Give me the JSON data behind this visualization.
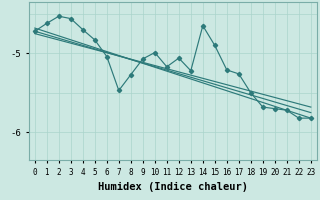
{
  "xlabel": "Humidex (Indice chaleur)",
  "x": [
    0,
    1,
    2,
    3,
    4,
    5,
    6,
    7,
    8,
    9,
    10,
    11,
    12,
    13,
    14,
    15,
    16,
    17,
    18,
    19,
    20,
    21,
    22,
    23
  ],
  "zigzag": [
    -4.72,
    -4.62,
    -4.53,
    -4.56,
    -4.7,
    -4.83,
    -5.04,
    -5.47,
    -5.27,
    -5.07,
    -4.99,
    -5.17,
    -5.06,
    -5.22,
    -4.65,
    -4.9,
    -5.21,
    -5.26,
    -5.5,
    -5.68,
    -5.7,
    -5.72,
    -5.82,
    -5.82
  ],
  "trend1": [
    -4.68,
    -5.82
  ],
  "trend2": [
    -4.72,
    -5.75
  ],
  "trend3": [
    -4.75,
    -5.68
  ],
  "trend_x": [
    0,
    23
  ],
  "ylim": [
    -6.35,
    -4.35
  ],
  "xlim": [
    -0.5,
    23.5
  ],
  "yticks": [
    -6,
    -5
  ],
  "bg_color": "#cce8e2",
  "grid_color": "#aad4cc",
  "line_color": "#2d7a7a",
  "tick_fontsize": 6.5,
  "label_fontsize": 7.5
}
